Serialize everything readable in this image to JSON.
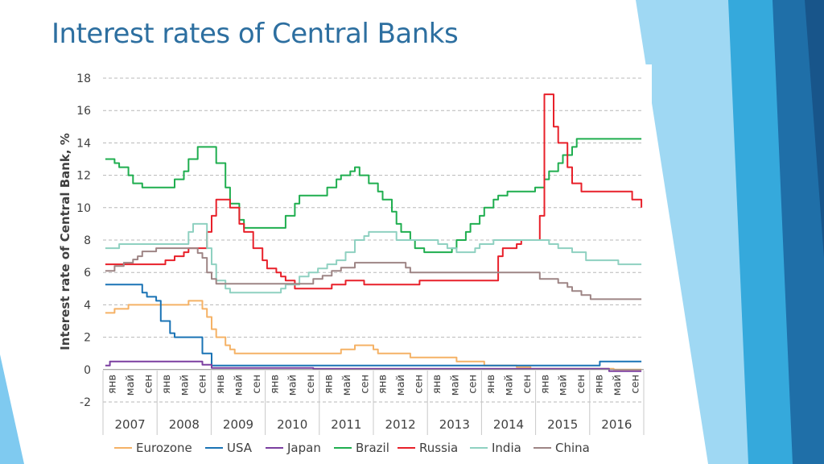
{
  "slide": {
    "title": "Interest rates of Central Banks"
  },
  "theme": {
    "title_color": "#2d6fa0",
    "accent_blue": "#2a9fd8",
    "accent_light": "#7fcaf0"
  },
  "chart_data": {
    "type": "line",
    "ylabel": "Interest rate of Central Bank, %",
    "ylim": [
      -2,
      18
    ],
    "yticks": [
      -2,
      0,
      2,
      4,
      6,
      8,
      10,
      12,
      14,
      16,
      18
    ],
    "grid": "horizontal dashed",
    "legend_position": "bottom",
    "x_start": "2007-01",
    "x_end": "2016-09",
    "month_ticks": [
      "янв",
      "май",
      "сен",
      "янв",
      "май",
      "сен",
      "янв",
      "май",
      "сен",
      "янв",
      "май",
      "сен",
      "янв",
      "май",
      "сен",
      "янв",
      "май",
      "сен",
      "янв",
      "май",
      "сен",
      "янв",
      "май",
      "сен",
      "янв",
      "май",
      "сен",
      "янв",
      "май",
      "сен"
    ],
    "years": [
      "2007",
      "2008",
      "2009",
      "2010",
      "2011",
      "2012",
      "2013",
      "2014",
      "2015",
      "2016"
    ],
    "series": [
      {
        "name": "Eurozone",
        "color": "#f5b266",
        "points": [
          [
            "2007-01",
            3.5
          ],
          [
            "2007-03",
            3.75
          ],
          [
            "2007-06",
            4.0
          ],
          [
            "2008-07",
            4.25
          ],
          [
            "2008-10",
            3.75
          ],
          [
            "2008-11",
            3.25
          ],
          [
            "2008-12",
            2.5
          ],
          [
            "2009-01",
            2.0
          ],
          [
            "2009-03",
            1.5
          ],
          [
            "2009-04",
            1.25
          ],
          [
            "2009-05",
            1.0
          ],
          [
            "2011-04",
            1.25
          ],
          [
            "2011-07",
            1.5
          ],
          [
            "2011-11",
            1.25
          ],
          [
            "2011-12",
            1.0
          ],
          [
            "2012-07",
            0.75
          ],
          [
            "2013-05",
            0.5
          ],
          [
            "2013-11",
            0.25
          ],
          [
            "2014-06",
            0.15
          ],
          [
            "2014-09",
            0.05
          ],
          [
            "2016-03",
            0.0
          ],
          [
            "2016-09",
            0.0
          ]
        ]
      },
      {
        "name": "USA",
        "color": "#1a73b5",
        "points": [
          [
            "2007-01",
            5.25
          ],
          [
            "2007-09",
            4.75
          ],
          [
            "2007-10",
            4.5
          ],
          [
            "2007-12",
            4.25
          ],
          [
            "2008-01",
            3.0
          ],
          [
            "2008-03",
            2.25
          ],
          [
            "2008-04",
            2.0
          ],
          [
            "2008-10",
            1.0
          ],
          [
            "2008-12",
            0.25
          ],
          [
            "2015-12",
            0.5
          ],
          [
            "2016-09",
            0.5
          ]
        ]
      },
      {
        "name": "Japan",
        "color": "#7b3fa0",
        "points": [
          [
            "2007-01",
            0.25
          ],
          [
            "2007-02",
            0.5
          ],
          [
            "2008-10",
            0.3
          ],
          [
            "2008-12",
            0.1
          ],
          [
            "2010-10",
            0.05
          ],
          [
            "2016-02",
            -0.1
          ],
          [
            "2016-09",
            -0.1
          ]
        ]
      },
      {
        "name": "Brazil",
        "color": "#1fae4f",
        "points": [
          [
            "2007-01",
            13.0
          ],
          [
            "2007-03",
            12.75
          ],
          [
            "2007-04",
            12.5
          ],
          [
            "2007-06",
            12.0
          ],
          [
            "2007-07",
            11.5
          ],
          [
            "2007-09",
            11.25
          ],
          [
            "2008-04",
            11.75
          ],
          [
            "2008-06",
            12.25
          ],
          [
            "2008-07",
            13.0
          ],
          [
            "2008-09",
            13.75
          ],
          [
            "2009-01",
            12.75
          ],
          [
            "2009-03",
            11.25
          ],
          [
            "2009-04",
            10.25
          ],
          [
            "2009-06",
            9.25
          ],
          [
            "2009-07",
            8.75
          ],
          [
            "2010-04",
            9.5
          ],
          [
            "2010-06",
            10.25
          ],
          [
            "2010-07",
            10.75
          ],
          [
            "2011-01",
            11.25
          ],
          [
            "2011-03",
            11.75
          ],
          [
            "2011-04",
            12.0
          ],
          [
            "2011-06",
            12.25
          ],
          [
            "2011-07",
            12.5
          ],
          [
            "2011-08",
            12.0
          ],
          [
            "2011-10",
            11.5
          ],
          [
            "2011-12",
            11.0
          ],
          [
            "2012-01",
            10.5
          ],
          [
            "2012-03",
            9.75
          ],
          [
            "2012-04",
            9.0
          ],
          [
            "2012-05",
            8.5
          ],
          [
            "2012-07",
            8.0
          ],
          [
            "2012-08",
            7.5
          ],
          [
            "2012-10",
            7.25
          ],
          [
            "2013-04",
            7.5
          ],
          [
            "2013-05",
            8.0
          ],
          [
            "2013-07",
            8.5
          ],
          [
            "2013-08",
            9.0
          ],
          [
            "2013-10",
            9.5
          ],
          [
            "2013-11",
            10.0
          ],
          [
            "2014-01",
            10.5
          ],
          [
            "2014-02",
            10.75
          ],
          [
            "2014-04",
            11.0
          ],
          [
            "2014-10",
            11.25
          ],
          [
            "2014-12",
            11.75
          ],
          [
            "2015-01",
            12.25
          ],
          [
            "2015-03",
            12.75
          ],
          [
            "2015-04",
            13.25
          ],
          [
            "2015-06",
            13.75
          ],
          [
            "2015-07",
            14.25
          ],
          [
            "2016-09",
            14.25
          ]
        ]
      },
      {
        "name": "Russia",
        "color": "#e8202a",
        "points": [
          [
            "2007-01",
            6.5
          ],
          [
            "2007-06",
            6.5
          ],
          [
            "2008-01",
            6.5
          ],
          [
            "2008-02",
            6.75
          ],
          [
            "2008-04",
            7.0
          ],
          [
            "2008-06",
            7.25
          ],
          [
            "2008-07",
            7.5
          ],
          [
            "2008-10",
            7.5
          ],
          [
            "2008-11",
            8.5
          ],
          [
            "2008-12",
            9.5
          ],
          [
            "2009-01",
            10.5
          ],
          [
            "2009-04",
            10.0
          ],
          [
            "2009-06",
            9.0
          ],
          [
            "2009-07",
            8.5
          ],
          [
            "2009-09",
            7.5
          ],
          [
            "2009-11",
            6.75
          ],
          [
            "2009-12",
            6.25
          ],
          [
            "2010-02",
            6.0
          ],
          [
            "2010-03",
            5.75
          ],
          [
            "2010-04",
            5.5
          ],
          [
            "2010-06",
            5.0
          ],
          [
            "2011-02",
            5.25
          ],
          [
            "2011-05",
            5.5
          ],
          [
            "2011-09",
            5.25
          ],
          [
            "2012-09",
            5.5
          ],
          [
            "2013-12",
            5.5
          ],
          [
            "2014-02",
            7.0
          ],
          [
            "2014-03",
            7.5
          ],
          [
            "2014-06",
            7.75
          ],
          [
            "2014-07",
            8.0
          ],
          [
            "2014-10",
            8.0
          ],
          [
            "2014-11",
            9.5
          ],
          [
            "2014-12",
            17.0
          ],
          [
            "2015-01",
            17.0
          ],
          [
            "2015-02",
            15.0
          ],
          [
            "2015-03",
            14.0
          ],
          [
            "2015-05",
            12.5
          ],
          [
            "2015-06",
            11.5
          ],
          [
            "2015-07",
            11.5
          ],
          [
            "2015-08",
            11.0
          ],
          [
            "2016-06",
            11.0
          ],
          [
            "2016-07",
            10.5
          ],
          [
            "2016-08",
            10.5
          ],
          [
            "2016-09",
            10.0
          ]
        ]
      },
      {
        "name": "India",
        "color": "#8fd1c1",
        "points": [
          [
            "2007-01",
            7.5
          ],
          [
            "2007-04",
            7.75
          ],
          [
            "2008-06",
            7.75
          ],
          [
            "2008-07",
            8.5
          ],
          [
            "2008-08",
            9.0
          ],
          [
            "2008-10",
            9.0
          ],
          [
            "2008-11",
            7.5
          ],
          [
            "2008-12",
            6.5
          ],
          [
            "2009-01",
            5.5
          ],
          [
            "2009-03",
            5.0
          ],
          [
            "2009-04",
            4.75
          ],
          [
            "2010-03",
            5.0
          ],
          [
            "2010-04",
            5.25
          ],
          [
            "2010-07",
            5.75
          ],
          [
            "2010-09",
            6.0
          ],
          [
            "2010-11",
            6.25
          ],
          [
            "2011-01",
            6.5
          ],
          [
            "2011-03",
            6.75
          ],
          [
            "2011-05",
            7.25
          ],
          [
            "2011-07",
            8.0
          ],
          [
            "2011-09",
            8.25
          ],
          [
            "2011-10",
            8.5
          ],
          [
            "2012-04",
            8.0
          ],
          [
            "2013-01",
            7.75
          ],
          [
            "2013-03",
            7.5
          ],
          [
            "2013-05",
            7.25
          ],
          [
            "2013-09",
            7.5
          ],
          [
            "2013-10",
            7.75
          ],
          [
            "2014-01",
            8.0
          ],
          [
            "2015-01",
            7.75
          ],
          [
            "2015-03",
            7.5
          ],
          [
            "2015-06",
            7.25
          ],
          [
            "2015-09",
            6.75
          ],
          [
            "2016-04",
            6.5
          ],
          [
            "2016-09",
            6.5
          ]
        ]
      },
      {
        "name": "China",
        "color": "#9e8585",
        "points": [
          [
            "2007-01",
            6.1
          ],
          [
            "2007-03",
            6.4
          ],
          [
            "2007-05",
            6.6
          ],
          [
            "2007-07",
            6.8
          ],
          [
            "2007-08",
            7.0
          ],
          [
            "2007-09",
            7.3
          ],
          [
            "2007-12",
            7.5
          ],
          [
            "2008-09",
            7.2
          ],
          [
            "2008-10",
            6.9
          ],
          [
            "2008-11",
            6.0
          ],
          [
            "2008-12",
            5.6
          ],
          [
            "2009-01",
            5.3
          ],
          [
            "2010-10",
            5.6
          ],
          [
            "2010-12",
            5.8
          ],
          [
            "2011-02",
            6.1
          ],
          [
            "2011-04",
            6.3
          ],
          [
            "2011-07",
            6.6
          ],
          [
            "2012-06",
            6.3
          ],
          [
            "2012-07",
            6.0
          ],
          [
            "2014-11",
            5.6
          ],
          [
            "2015-03",
            5.35
          ],
          [
            "2015-05",
            5.1
          ],
          [
            "2015-06",
            4.85
          ],
          [
            "2015-08",
            4.6
          ],
          [
            "2015-10",
            4.35
          ],
          [
            "2016-09",
            4.35
          ]
        ]
      }
    ]
  }
}
